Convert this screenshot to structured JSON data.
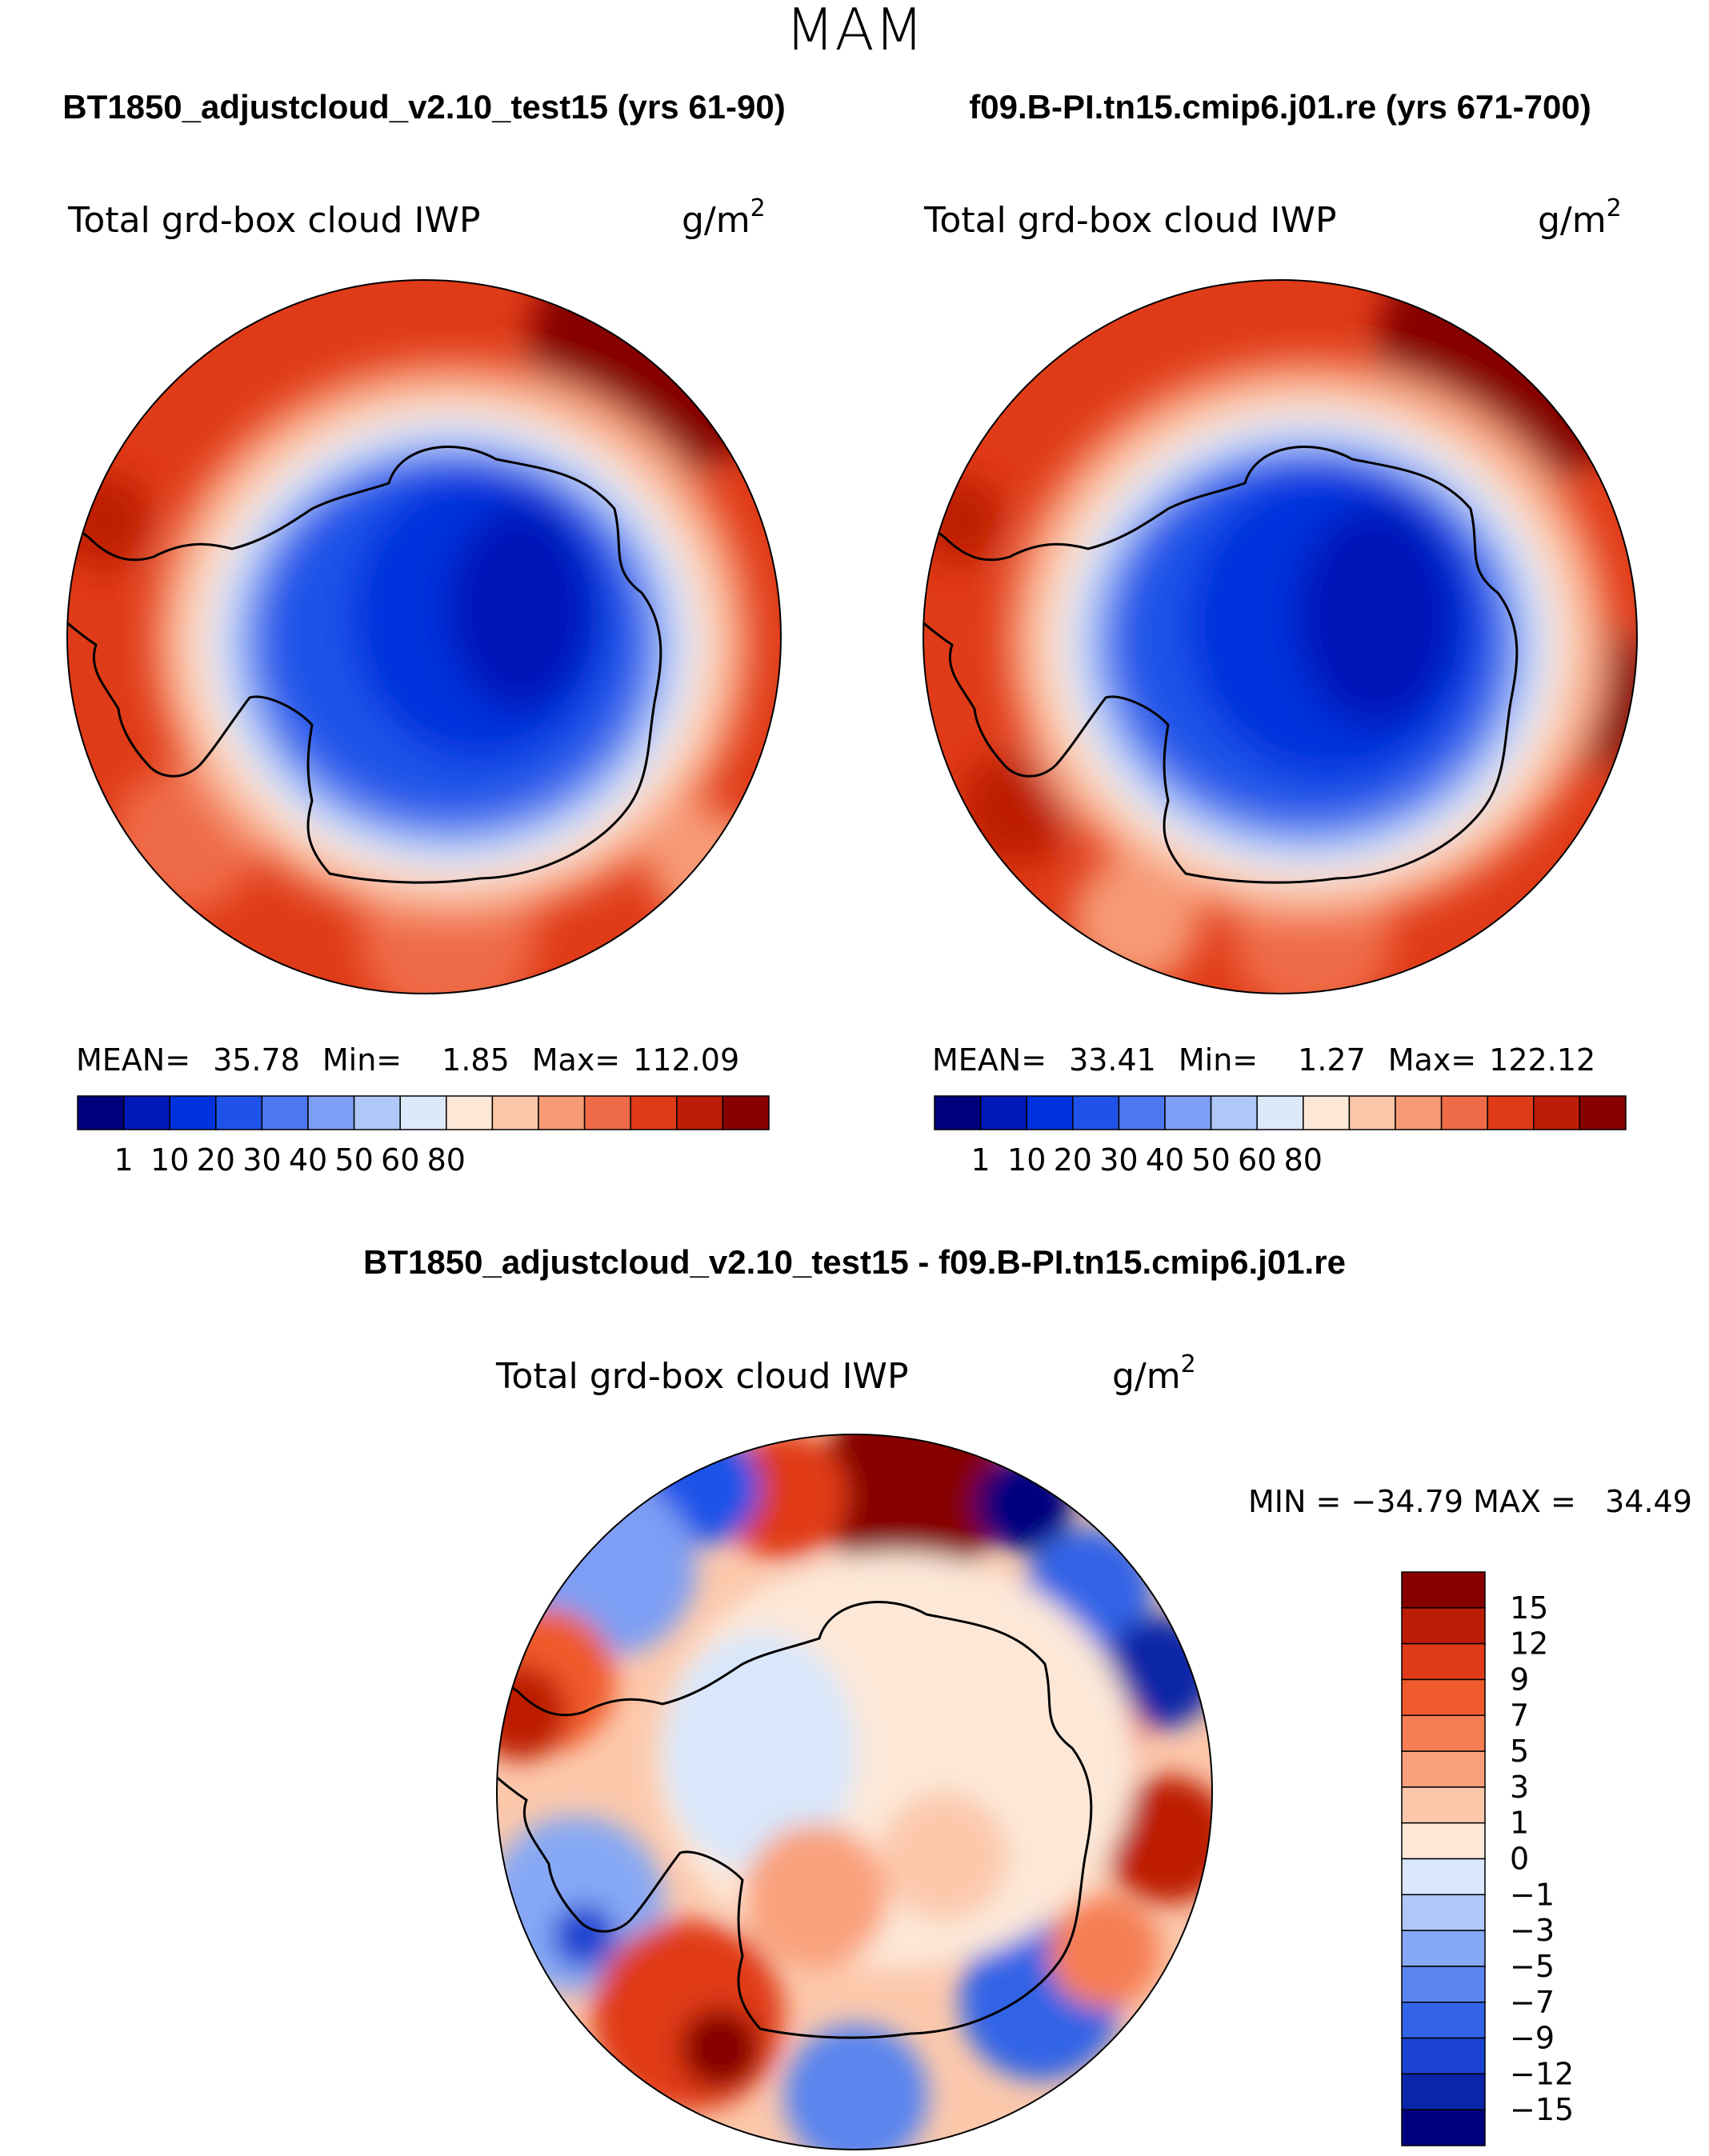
{
  "figure": {
    "season": "MAM",
    "left_title": "BT1850_adjustcloud_v2.10_test15 (yrs 61-90)",
    "right_title": "f09.B-PI.tn15.cmip6.j01.re (yrs 671-700)",
    "diff_title": "BT1850_adjustcloud_v2.10_test15 - f09.B-PI.tn15.cmip6.j01.re"
  },
  "chart_data": [
    {
      "type": "heatmap",
      "title": "Total grd-box cloud IWP",
      "units_base": "g/m",
      "units_exp": "2",
      "stats": {
        "mean_label": "MEAN=",
        "mean": "35.78",
        "min_label": "Min=",
        "min": "1.85",
        "max_label": "Max=",
        "max": "112.09"
      },
      "levels": [
        "1",
        "10",
        "20",
        "30",
        "40",
        "50",
        "60",
        "80"
      ],
      "colors": [
        "#00007f",
        "#0018b8",
        "#0033dd",
        "#1f52e8",
        "#4d77ef",
        "#7d9ef4",
        "#b0c8f8",
        "#dce9fb",
        "#fde8d8",
        "#fbc6a8",
        "#f79a76",
        "#ef6a46",
        "#e03b18",
        "#bd1c06",
        "#860000"
      ]
    },
    {
      "type": "heatmap",
      "title": "Total grd-box cloud IWP",
      "units_base": "g/m",
      "units_exp": "2",
      "stats": {
        "mean_label": "MEAN=",
        "mean": "33.41",
        "min_label": "Min=",
        "min": "1.27",
        "max_label": "Max=",
        "max": "122.12"
      },
      "levels": [
        "1",
        "10",
        "20",
        "30",
        "40",
        "50",
        "60",
        "80"
      ],
      "colors": [
        "#00007f",
        "#0018b8",
        "#0033dd",
        "#1f52e8",
        "#4d77ef",
        "#7d9ef4",
        "#b0c8f8",
        "#dce9fb",
        "#fde8d8",
        "#fbc6a8",
        "#f79a76",
        "#ef6a46",
        "#e03b18",
        "#bd1c06",
        "#860000"
      ]
    },
    {
      "type": "heatmap",
      "title": "Total grd-box cloud IWP",
      "units_base": "g/m",
      "units_exp": "2",
      "stats_text": "MIN = −34.79 MAX =   34.49",
      "levels": [
        "15",
        "12",
        "9",
        "7",
        "5",
        "3",
        "1",
        "0",
        "−1",
        "−3",
        "−5",
        "−7",
        "−9",
        "−12",
        "−15"
      ],
      "colors": [
        "#860000",
        "#bd1c06",
        "#e03b18",
        "#f05a2c",
        "#f67e52",
        "#f9a17c",
        "#fcc8ac",
        "#fde8d8",
        "#d8e7fb",
        "#b0c8f8",
        "#86a8f5",
        "#5a84ef",
        "#3363e6",
        "#1b44d2",
        "#0a25a8",
        "#00007f"
      ]
    }
  ]
}
